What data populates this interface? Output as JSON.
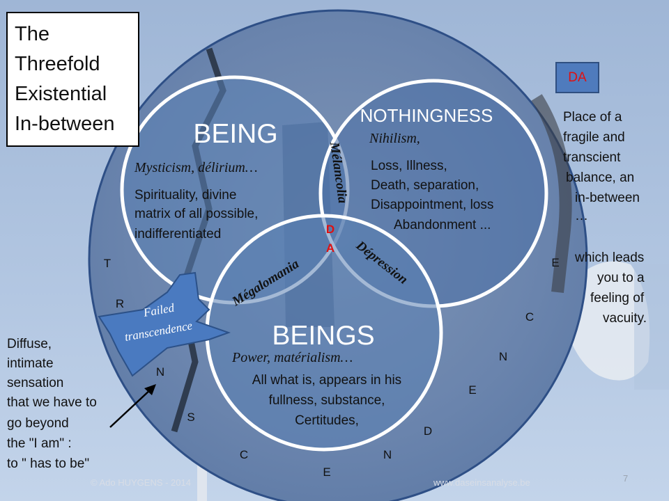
{
  "title_lines": [
    "The",
    "Threefold",
    "Existential",
    "In-between"
  ],
  "da_label": "DA",
  "right_text_lines": [
    "Place of a",
    "fragile and",
    "transcient",
    "balance,   an",
    "in-between",
    "…",
    "which leads",
    "you to a",
    "feeling of",
    "vacuity."
  ],
  "left_text_lines": [
    "Diffuse,",
    "intimate",
    "sensation",
    "that we have to",
    "go beyond",
    "the \"I am\" :",
    "to \" has to be\""
  ],
  "circles": {
    "being": {
      "title": "BEING",
      "subtitle": "Mysticism, délirium…",
      "body": [
        "Spirituality, divine",
        "matrix of all possible,",
        "indifferentiated"
      ]
    },
    "nothingness": {
      "title": "NOTHINGNESS",
      "subtitle": "Nihilism,",
      "body": [
        "Loss, Illness,",
        "Death, separation,",
        "Disappointment, loss",
        "Abandonment ..."
      ]
    },
    "beings": {
      "title": "BEINGS",
      "subtitle": "Power, matérialism…",
      "body": [
        "All what is, appears in his",
        "fullness,  substance,",
        "Certitudes,"
      ]
    }
  },
  "intersections": {
    "melancolia": "Mélancolia",
    "megalomania": "Mégalomania",
    "depression": "Dépression",
    "center_letters": [
      "D",
      "A"
    ]
  },
  "failed_transcendence": [
    "Failed",
    "transcendence"
  ],
  "ring_letters": [
    "T",
    "R",
    "N",
    "S",
    "C",
    "E",
    "N",
    "D",
    "E",
    "N",
    "C",
    "E"
  ],
  "footer": {
    "copyright": "© Ado HUYGENS  - 2014",
    "website": "www.daseinsanalyse.be",
    "page": "7"
  },
  "colors": {
    "big_circle": "#4a6b9d",
    "inner_circle": "#5a7fb3",
    "background_sky": "#a9c0dd",
    "da_red": "#e01010",
    "da_box": "#4f7bbd"
  }
}
